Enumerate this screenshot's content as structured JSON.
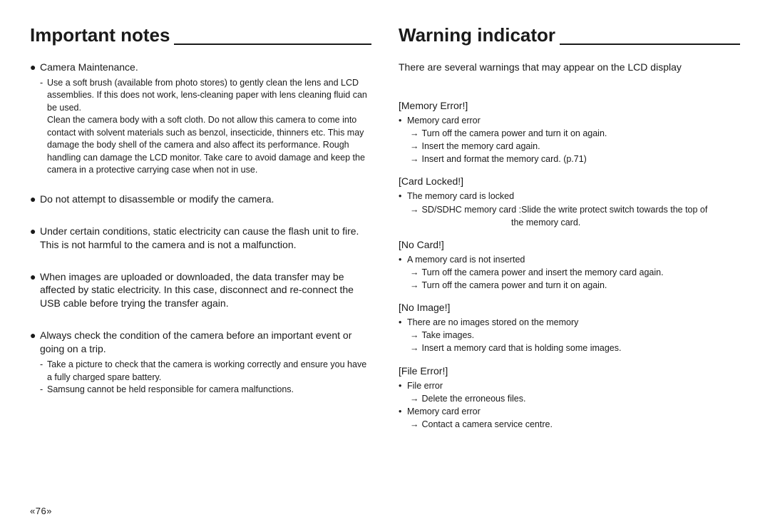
{
  "left": {
    "title": "Important notes",
    "b1": "Camera Maintenance.",
    "b1_sub": "Use a soft brush (available from photo stores) to gently clean the lens and LCD assemblies. If this does not work, lens-cleaning paper with lens cleaning fluid can be used.\nClean the camera body with a soft cloth. Do not allow this camera to come into contact with solvent materials such as benzol, insecticide, thinners etc. This may damage the body shell of the camera and also affect its performance. Rough handling can damage the LCD monitor. Take care to avoid damage and keep the camera in a protective carrying case when not in use.",
    "b2": "Do not attempt to disassemble or modify the camera.",
    "b3": "Under certain conditions, static electricity can cause the flash unit to fire. This is not harmful to the camera and is not a malfunction.",
    "b4": "When images are uploaded or downloaded, the data transfer may be affected by static electricity. In this case, disconnect and re-connect the USB cable before trying the transfer again.",
    "b5": "Always check the condition of the camera before an important event or going on a trip.",
    "b5_sub1": "Take a picture to check that the camera is working correctly and ensure you have a fully charged spare battery.",
    "b5_sub2": "Samsung cannot be held responsible for camera malfunctions."
  },
  "right": {
    "title": "Warning indicator",
    "intro": "There are several warnings that may appear on the LCD display",
    "s1": {
      "label": "[Memory Error!]",
      "item": "Memory card error",
      "a1": "Turn off the camera power and turn it on again.",
      "a2": "Insert the memory card again.",
      "a3": "Insert and format the memory card. (p.71)"
    },
    "s2": {
      "label": "[Card Locked!]",
      "item": "The memory card is locked",
      "a1a": "SD/SDHC memory card :Slide the write protect switch towards the top of",
      "a1b": "the memory card."
    },
    "s3": {
      "label": "[No Card!]",
      "item": "A memory card is not inserted",
      "a1": "Turn off the camera power and insert the memory card again.",
      "a2": "Turn off the camera power and turn it on again."
    },
    "s4": {
      "label": "[No Image!]",
      "item": "There are no images stored on the memory",
      "a1": "Take images.",
      "a2": "Insert a memory card that is holding some images."
    },
    "s5": {
      "label": "[File Error!]",
      "item1": "File error",
      "a1": "Delete the erroneous files.",
      "item2": "Memory card error",
      "a2": "Contact a camera service centre."
    }
  },
  "page_num": "«76»"
}
